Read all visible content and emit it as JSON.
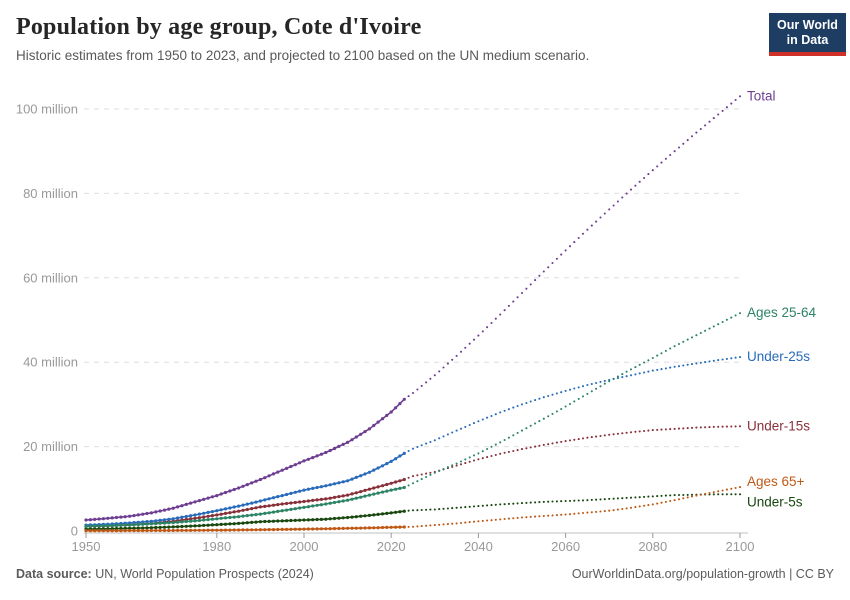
{
  "header": {
    "title": "Population by age group, Cote d'Ivoire",
    "subtitle": "Historic estimates from 1950 to 2023, and projected to 2100 based on the UN medium scenario."
  },
  "logo": {
    "line1": "Our World",
    "line2": "in Data"
  },
  "chart_data": {
    "type": "line",
    "title": "Population by age group, Cote d'Ivoire",
    "unit": "people (millions)",
    "projection_start": 2023,
    "x_axis": {
      "min": 1950,
      "max": 2100,
      "ticks": [
        1950,
        1980,
        2000,
        2020,
        2040,
        2060,
        2080,
        2100
      ]
    },
    "y_axis": {
      "min": 0,
      "max": 105,
      "tick_values": [
        0,
        20,
        40,
        60,
        80,
        100
      ],
      "tick_labels": [
        "0",
        "20 million",
        "40 million",
        "60 million",
        "80 million",
        "100 million"
      ],
      "gridlines": "dashed"
    },
    "legend_position": "right-of-line-ends",
    "series": [
      {
        "name": "Total",
        "color": "#6D3E91",
        "label_dy": 0,
        "historic": [
          [
            1950,
            2.6
          ],
          [
            1955,
            3.0
          ],
          [
            1960,
            3.5
          ],
          [
            1965,
            4.3
          ],
          [
            1970,
            5.4
          ],
          [
            1975,
            6.9
          ],
          [
            1980,
            8.4
          ],
          [
            1985,
            10.2
          ],
          [
            1990,
            12.2
          ],
          [
            1995,
            14.4
          ],
          [
            2000,
            16.6
          ],
          [
            2005,
            18.6
          ],
          [
            2010,
            21.0
          ],
          [
            2015,
            24.2
          ],
          [
            2020,
            28.2
          ],
          [
            2023,
            31.2
          ]
        ],
        "projected": [
          [
            2023,
            31.2
          ],
          [
            2025,
            32.7
          ],
          [
            2030,
            36.9
          ],
          [
            2035,
            41.5
          ],
          [
            2040,
            46.3
          ],
          [
            2045,
            51.3
          ],
          [
            2050,
            56.4
          ],
          [
            2055,
            61.5
          ],
          [
            2060,
            66.5
          ],
          [
            2065,
            71.4
          ],
          [
            2070,
            76.2
          ],
          [
            2075,
            80.9
          ],
          [
            2080,
            85.5
          ],
          [
            2085,
            90.0
          ],
          [
            2090,
            94.4
          ],
          [
            2095,
            98.7
          ],
          [
            2100,
            103.0
          ]
        ]
      },
      {
        "name": "Ages 25-64",
        "color": "#2C8465",
        "label_dy": 0,
        "historic": [
          [
            1950,
            1.1
          ],
          [
            1955,
            1.25
          ],
          [
            1960,
            1.4
          ],
          [
            1965,
            1.7
          ],
          [
            1970,
            2.0
          ],
          [
            1975,
            2.4
          ],
          [
            1980,
            2.9
          ],
          [
            1985,
            3.4
          ],
          [
            1990,
            4.0
          ],
          [
            1995,
            4.8
          ],
          [
            2000,
            5.6
          ],
          [
            2005,
            6.4
          ],
          [
            2010,
            7.3
          ],
          [
            2015,
            8.5
          ],
          [
            2020,
            9.7
          ],
          [
            2023,
            10.3
          ]
        ],
        "projected": [
          [
            2023,
            10.3
          ],
          [
            2025,
            11.3
          ],
          [
            2030,
            13.8
          ],
          [
            2035,
            16.0
          ],
          [
            2040,
            18.4
          ],
          [
            2045,
            21.0
          ],
          [
            2050,
            23.8
          ],
          [
            2055,
            26.6
          ],
          [
            2060,
            29.5
          ],
          [
            2065,
            32.5
          ],
          [
            2070,
            35.5
          ],
          [
            2075,
            38.3
          ],
          [
            2080,
            41.0
          ],
          [
            2085,
            43.8
          ],
          [
            2090,
            46.4
          ],
          [
            2095,
            49.0
          ],
          [
            2100,
            51.6
          ]
        ]
      },
      {
        "name": "Under-25s",
        "color": "#286BBB",
        "label_dy": 0,
        "historic": [
          [
            1950,
            1.4
          ],
          [
            1955,
            1.6
          ],
          [
            1960,
            1.9
          ],
          [
            1965,
            2.3
          ],
          [
            1970,
            2.9
          ],
          [
            1975,
            3.8
          ],
          [
            1980,
            4.8
          ],
          [
            1985,
            5.9
          ],
          [
            1990,
            7.1
          ],
          [
            1995,
            8.4
          ],
          [
            2000,
            9.7
          ],
          [
            2005,
            10.7
          ],
          [
            2010,
            11.9
          ],
          [
            2015,
            13.9
          ],
          [
            2020,
            16.5
          ],
          [
            2023,
            18.4
          ]
        ],
        "projected": [
          [
            2023,
            18.4
          ],
          [
            2025,
            19.5
          ],
          [
            2030,
            21.5
          ],
          [
            2035,
            23.8
          ],
          [
            2040,
            26.0
          ],
          [
            2045,
            28.1
          ],
          [
            2050,
            30.0
          ],
          [
            2055,
            31.7
          ],
          [
            2060,
            33.2
          ],
          [
            2065,
            34.6
          ],
          [
            2070,
            35.8
          ],
          [
            2075,
            36.9
          ],
          [
            2080,
            38.0
          ],
          [
            2085,
            38.9
          ],
          [
            2090,
            39.7
          ],
          [
            2095,
            40.5
          ],
          [
            2100,
            41.2
          ]
        ]
      },
      {
        "name": "Under-15s",
        "color": "#883039",
        "label_dy": 0,
        "historic": [
          [
            1950,
            1.1
          ],
          [
            1955,
            1.2
          ],
          [
            1960,
            1.5
          ],
          [
            1965,
            1.8
          ],
          [
            1970,
            2.3
          ],
          [
            1975,
            3.0
          ],
          [
            1980,
            3.8
          ],
          [
            1985,
            4.7
          ],
          [
            1990,
            5.7
          ],
          [
            1995,
            6.4
          ],
          [
            2000,
            7.0
          ],
          [
            2005,
            7.6
          ],
          [
            2010,
            8.5
          ],
          [
            2015,
            9.9
          ],
          [
            2020,
            11.3
          ],
          [
            2023,
            12.2
          ]
        ],
        "projected": [
          [
            2023,
            12.2
          ],
          [
            2025,
            13.0
          ],
          [
            2030,
            14.0
          ],
          [
            2035,
            15.5
          ],
          [
            2040,
            17.0
          ],
          [
            2045,
            18.3
          ],
          [
            2050,
            19.4
          ],
          [
            2055,
            20.4
          ],
          [
            2060,
            21.3
          ],
          [
            2065,
            22.1
          ],
          [
            2070,
            22.8
          ],
          [
            2075,
            23.4
          ],
          [
            2080,
            23.9
          ],
          [
            2085,
            24.2
          ],
          [
            2090,
            24.5
          ],
          [
            2095,
            24.7
          ],
          [
            2100,
            24.8
          ]
        ]
      },
      {
        "name": "Ages 65+",
        "color": "#BE5915",
        "label_dy": -5,
        "historic": [
          [
            1950,
            0.06
          ],
          [
            1955,
            0.07
          ],
          [
            1960,
            0.09
          ],
          [
            1965,
            0.11
          ],
          [
            1970,
            0.13
          ],
          [
            1975,
            0.16
          ],
          [
            1980,
            0.19
          ],
          [
            1985,
            0.24
          ],
          [
            1990,
            0.3
          ],
          [
            1995,
            0.37
          ],
          [
            2000,
            0.45
          ],
          [
            2005,
            0.53
          ],
          [
            2010,
            0.63
          ],
          [
            2015,
            0.74
          ],
          [
            2020,
            0.87
          ],
          [
            2023,
            0.95
          ]
        ],
        "projected": [
          [
            2023,
            0.95
          ],
          [
            2025,
            1.0
          ],
          [
            2030,
            1.4
          ],
          [
            2035,
            1.8
          ],
          [
            2040,
            2.3
          ],
          [
            2045,
            2.75
          ],
          [
            2050,
            3.2
          ],
          [
            2055,
            3.55
          ],
          [
            2060,
            3.9
          ],
          [
            2065,
            4.35
          ],
          [
            2070,
            4.8
          ],
          [
            2075,
            5.5
          ],
          [
            2080,
            6.3
          ],
          [
            2085,
            7.3
          ],
          [
            2090,
            8.4
          ],
          [
            2095,
            9.4
          ],
          [
            2100,
            10.4
          ]
        ]
      },
      {
        "name": "Under-5s",
        "color": "#18470F",
        "label_dy": 8,
        "historic": [
          [
            1950,
            0.45
          ],
          [
            1955,
            0.52
          ],
          [
            1960,
            0.63
          ],
          [
            1965,
            0.78
          ],
          [
            1970,
            0.97
          ],
          [
            1975,
            1.2
          ],
          [
            1980,
            1.5
          ],
          [
            1985,
            1.8
          ],
          [
            1990,
            2.2
          ],
          [
            1995,
            2.4
          ],
          [
            2000,
            2.6
          ],
          [
            2005,
            2.8
          ],
          [
            2010,
            3.2
          ],
          [
            2015,
            3.7
          ],
          [
            2020,
            4.3
          ],
          [
            2023,
            4.7
          ]
        ],
        "projected": [
          [
            2023,
            4.7
          ],
          [
            2025,
            4.9
          ],
          [
            2030,
            5.1
          ],
          [
            2035,
            5.5
          ],
          [
            2040,
            5.9
          ],
          [
            2045,
            6.3
          ],
          [
            2050,
            6.6
          ],
          [
            2055,
            6.9
          ],
          [
            2060,
            7.1
          ],
          [
            2065,
            7.3
          ],
          [
            2070,
            7.6
          ],
          [
            2075,
            7.9
          ],
          [
            2080,
            8.2
          ],
          [
            2085,
            8.5
          ],
          [
            2090,
            8.6
          ],
          [
            2095,
            8.7
          ],
          [
            2100,
            8.7
          ]
        ]
      }
    ]
  },
  "footer": {
    "source_label": "Data source:",
    "source": " UN, World Population Prospects (2024)",
    "credit": "OurWorldinData.org/population-growth | CC BY"
  },
  "colors": {
    "grid": "#dedede",
    "axis_line": "#c0c0c0",
    "tick_text": "#999999",
    "logo_bg": "#1d3d63",
    "logo_stripe": "#cf3028"
  }
}
